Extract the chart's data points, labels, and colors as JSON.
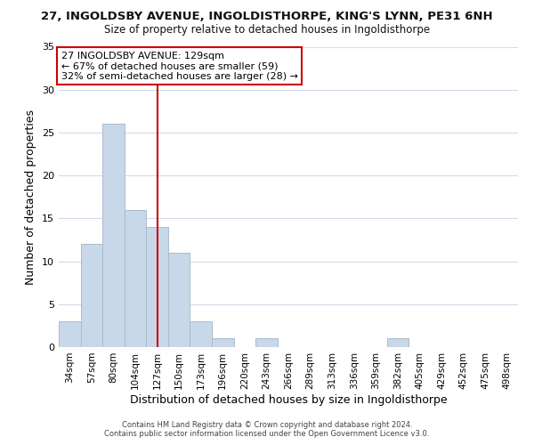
{
  "title_line1": "27, INGOLDSBY AVENUE, INGOLDISTHORPE, KING'S LYNN, PE31 6NH",
  "title_line2": "Size of property relative to detached houses in Ingoldisthorpe",
  "xlabel": "Distribution of detached houses by size in Ingoldisthorpe",
  "ylabel": "Number of detached properties",
  "bar_labels": [
    "34sqm",
    "57sqm",
    "80sqm",
    "104sqm",
    "127sqm",
    "150sqm",
    "173sqm",
    "196sqm",
    "220sqm",
    "243sqm",
    "266sqm",
    "289sqm",
    "313sqm",
    "336sqm",
    "359sqm",
    "382sqm",
    "405sqm",
    "429sqm",
    "452sqm",
    "475sqm",
    "498sqm"
  ],
  "bar_values": [
    3,
    12,
    26,
    16,
    14,
    11,
    3,
    1,
    0,
    1,
    0,
    0,
    0,
    0,
    0,
    1,
    0,
    0,
    0,
    0,
    0
  ],
  "bar_color": "#c8d8e8",
  "bar_edge_color": "#aabccc",
  "vline_x": 4,
  "vline_color": "#cc0000",
  "ylim": [
    0,
    35
  ],
  "yticks": [
    0,
    5,
    10,
    15,
    20,
    25,
    30,
    35
  ],
  "annotation_title": "27 INGOLDSBY AVENUE: 129sqm",
  "annotation_line1": "← 67% of detached houses are smaller (59)",
  "annotation_line2": "32% of semi-detached houses are larger (28) →",
  "footer_line1": "Contains HM Land Registry data © Crown copyright and database right 2024.",
  "footer_line2": "Contains public sector information licensed under the Open Government Licence v3.0.",
  "background_color": "#ffffff",
  "annotation_box_color": "#ffffff",
  "annotation_box_edge": "#cc0000"
}
